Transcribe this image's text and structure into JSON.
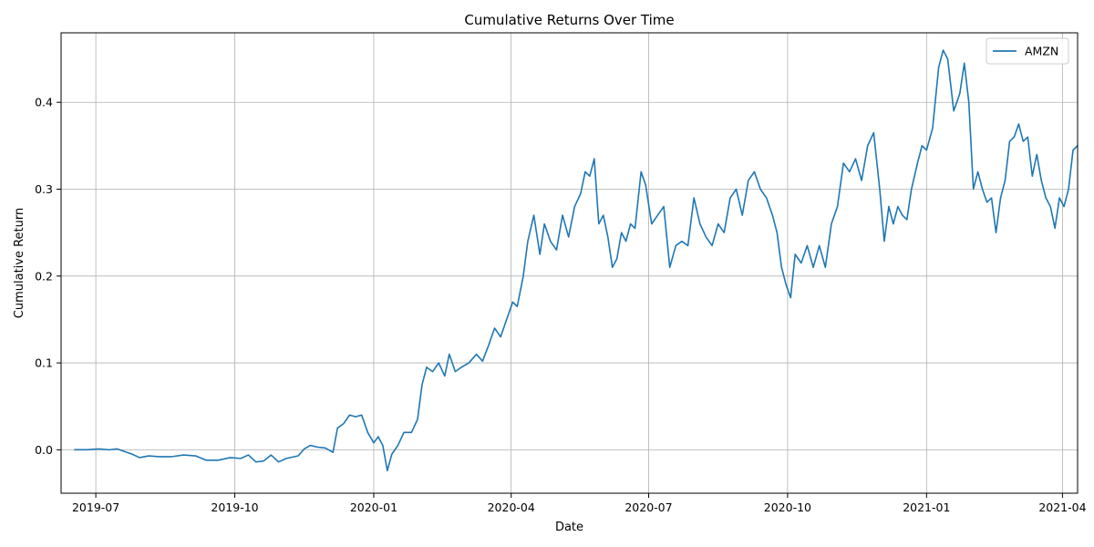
{
  "chart_data": {
    "type": "line",
    "title": "Cumulative Returns Over Time",
    "xlabel": "Date",
    "ylabel": "Cumulative Return",
    "x_axis": "date",
    "xlim": [
      "2019-06-08",
      "2021-04-11"
    ],
    "ylim": [
      -0.05,
      0.48
    ],
    "x_ticks": [
      "2019-07",
      "2019-10",
      "2020-01",
      "2020-04",
      "2020-07",
      "2020-10",
      "2021-01",
      "2021-04"
    ],
    "y_ticks": [
      "0.0",
      "0.1",
      "0.2",
      "0.3",
      "0.4"
    ],
    "grid": true,
    "legend_position": "top-right",
    "series": [
      {
        "name": "AMZN",
        "color": "#1f77b4",
        "points": [
          [
            "2019-06-17",
            0.0
          ],
          [
            "2019-06-25",
            0.0
          ],
          [
            "2019-07-03",
            0.001
          ],
          [
            "2019-07-10",
            0.0
          ],
          [
            "2019-07-15",
            0.001
          ],
          [
            "2019-07-20",
            -0.002
          ],
          [
            "2019-07-25",
            -0.005
          ],
          [
            "2019-07-30",
            -0.009
          ],
          [
            "2019-08-05",
            -0.007
          ],
          [
            "2019-08-12",
            -0.008
          ],
          [
            "2019-08-20",
            -0.008
          ],
          [
            "2019-08-28",
            -0.006
          ],
          [
            "2019-09-05",
            -0.007
          ],
          [
            "2019-09-12",
            -0.012
          ],
          [
            "2019-09-20",
            -0.012
          ],
          [
            "2019-09-28",
            -0.009
          ],
          [
            "2019-10-05",
            -0.01
          ],
          [
            "2019-10-10",
            -0.006
          ],
          [
            "2019-10-15",
            -0.014
          ],
          [
            "2019-10-20",
            -0.013
          ],
          [
            "2019-10-25",
            -0.006
          ],
          [
            "2019-10-30",
            -0.014
          ],
          [
            "2019-11-04",
            -0.01
          ],
          [
            "2019-11-12",
            -0.007
          ],
          [
            "2019-11-16",
            0.001
          ],
          [
            "2019-11-20",
            0.005
          ],
          [
            "2019-11-25",
            0.003
          ],
          [
            "2019-11-30",
            0.002
          ],
          [
            "2019-12-05",
            -0.003
          ],
          [
            "2019-12-08",
            0.025
          ],
          [
            "2019-12-12",
            0.03
          ],
          [
            "2019-12-16",
            0.04
          ],
          [
            "2019-12-20",
            0.038
          ],
          [
            "2019-12-24",
            0.04
          ],
          [
            "2019-12-28",
            0.02
          ],
          [
            "2020-01-01",
            0.008
          ],
          [
            "2020-01-04",
            0.015
          ],
          [
            "2020-01-07",
            0.005
          ],
          [
            "2020-01-10",
            -0.024
          ],
          [
            "2020-01-13",
            -0.005
          ],
          [
            "2020-01-17",
            0.005
          ],
          [
            "2020-01-21",
            0.02
          ],
          [
            "2020-01-26",
            0.02
          ],
          [
            "2020-01-30",
            0.035
          ],
          [
            "2020-02-02",
            0.075
          ],
          [
            "2020-02-05",
            0.095
          ],
          [
            "2020-02-09",
            0.09
          ],
          [
            "2020-02-13",
            0.1
          ],
          [
            "2020-02-17",
            0.085
          ],
          [
            "2020-02-20",
            0.11
          ],
          [
            "2020-02-24",
            0.09
          ],
          [
            "2020-02-28",
            0.095
          ],
          [
            "2020-03-04",
            0.1
          ],
          [
            "2020-03-09",
            0.11
          ],
          [
            "2020-03-13",
            0.102
          ],
          [
            "2020-03-17",
            0.12
          ],
          [
            "2020-03-21",
            0.14
          ],
          [
            "2020-03-25",
            0.13
          ],
          [
            "2020-03-29",
            0.15
          ],
          [
            "2020-04-02",
            0.17
          ],
          [
            "2020-04-05",
            0.165
          ],
          [
            "2020-04-09",
            0.2
          ],
          [
            "2020-04-12",
            0.24
          ],
          [
            "2020-04-16",
            0.27
          ],
          [
            "2020-04-20",
            0.225
          ],
          [
            "2020-04-23",
            0.26
          ],
          [
            "2020-04-27",
            0.24
          ],
          [
            "2020-05-01",
            0.23
          ],
          [
            "2020-05-05",
            0.27
          ],
          [
            "2020-05-09",
            0.245
          ],
          [
            "2020-05-13",
            0.28
          ],
          [
            "2020-05-17",
            0.295
          ],
          [
            "2020-05-20",
            0.32
          ],
          [
            "2020-05-23",
            0.315
          ],
          [
            "2020-05-26",
            0.335
          ],
          [
            "2020-05-29",
            0.26
          ],
          [
            "2020-06-01",
            0.27
          ],
          [
            "2020-06-04",
            0.245
          ],
          [
            "2020-06-07",
            0.21
          ],
          [
            "2020-06-10",
            0.22
          ],
          [
            "2020-06-13",
            0.25
          ],
          [
            "2020-06-16",
            0.24
          ],
          [
            "2020-06-19",
            0.26
          ],
          [
            "2020-06-22",
            0.255
          ],
          [
            "2020-06-26",
            0.32
          ],
          [
            "2020-06-29",
            0.305
          ],
          [
            "2020-07-03",
            0.26
          ],
          [
            "2020-07-07",
            0.27
          ],
          [
            "2020-07-11",
            0.28
          ],
          [
            "2020-07-15",
            0.21
          ],
          [
            "2020-07-19",
            0.235
          ],
          [
            "2020-07-23",
            0.24
          ],
          [
            "2020-07-27",
            0.235
          ],
          [
            "2020-07-31",
            0.29
          ],
          [
            "2020-08-04",
            0.26
          ],
          [
            "2020-08-08",
            0.245
          ],
          [
            "2020-08-12",
            0.235
          ],
          [
            "2020-08-16",
            0.26
          ],
          [
            "2020-08-20",
            0.25
          ],
          [
            "2020-08-24",
            0.29
          ],
          [
            "2020-08-28",
            0.3
          ],
          [
            "2020-09-01",
            0.27
          ],
          [
            "2020-09-05",
            0.31
          ],
          [
            "2020-09-09",
            0.32
          ],
          [
            "2020-09-13",
            0.3
          ],
          [
            "2020-09-17",
            0.29
          ],
          [
            "2020-09-21",
            0.27
          ],
          [
            "2020-09-24",
            0.25
          ],
          [
            "2020-09-27",
            0.21
          ],
          [
            "2020-09-30",
            0.19
          ],
          [
            "2020-10-03",
            0.175
          ],
          [
            "2020-10-06",
            0.225
          ],
          [
            "2020-10-10",
            0.215
          ],
          [
            "2020-10-14",
            0.235
          ],
          [
            "2020-10-18",
            0.21
          ],
          [
            "2020-10-22",
            0.235
          ],
          [
            "2020-10-26",
            0.21
          ],
          [
            "2020-10-30",
            0.26
          ],
          [
            "2020-11-03",
            0.28
          ],
          [
            "2020-11-07",
            0.33
          ],
          [
            "2020-11-11",
            0.32
          ],
          [
            "2020-11-15",
            0.335
          ],
          [
            "2020-11-19",
            0.31
          ],
          [
            "2020-11-23",
            0.35
          ],
          [
            "2020-11-27",
            0.365
          ],
          [
            "2020-12-01",
            0.3
          ],
          [
            "2020-12-04",
            0.24
          ],
          [
            "2020-12-07",
            0.28
          ],
          [
            "2020-12-10",
            0.26
          ],
          [
            "2020-12-13",
            0.28
          ],
          [
            "2020-12-16",
            0.27
          ],
          [
            "2020-12-19",
            0.265
          ],
          [
            "2020-12-22",
            0.3
          ],
          [
            "2020-12-26",
            0.33
          ],
          [
            "2020-12-29",
            0.35
          ],
          [
            "2021-01-01",
            0.345
          ],
          [
            "2021-01-05",
            0.37
          ],
          [
            "2021-01-09",
            0.44
          ],
          [
            "2021-01-12",
            0.46
          ],
          [
            "2021-01-15",
            0.45
          ],
          [
            "2021-01-19",
            0.39
          ],
          [
            "2021-01-23",
            0.41
          ],
          [
            "2021-01-26",
            0.445
          ],
          [
            "2021-01-29",
            0.4
          ],
          [
            "2021-02-01",
            0.3
          ],
          [
            "2021-02-04",
            0.32
          ],
          [
            "2021-02-07",
            0.3
          ],
          [
            "2021-02-10",
            0.285
          ],
          [
            "2021-02-13",
            0.29
          ],
          [
            "2021-02-16",
            0.25
          ],
          [
            "2021-02-19",
            0.29
          ],
          [
            "2021-02-22",
            0.31
          ],
          [
            "2021-02-25",
            0.355
          ],
          [
            "2021-02-28",
            0.36
          ],
          [
            "2021-03-03",
            0.375
          ],
          [
            "2021-03-06",
            0.355
          ],
          [
            "2021-03-09",
            0.36
          ],
          [
            "2021-03-12",
            0.315
          ],
          [
            "2021-03-15",
            0.34
          ],
          [
            "2021-03-18",
            0.31
          ],
          [
            "2021-03-21",
            0.29
          ],
          [
            "2021-03-24",
            0.28
          ],
          [
            "2021-03-27",
            0.255
          ],
          [
            "2021-03-30",
            0.29
          ],
          [
            "2021-04-02",
            0.28
          ],
          [
            "2021-04-05",
            0.3
          ],
          [
            "2021-04-08",
            0.345
          ],
          [
            "2021-04-11",
            0.35
          ]
        ]
      }
    ]
  }
}
